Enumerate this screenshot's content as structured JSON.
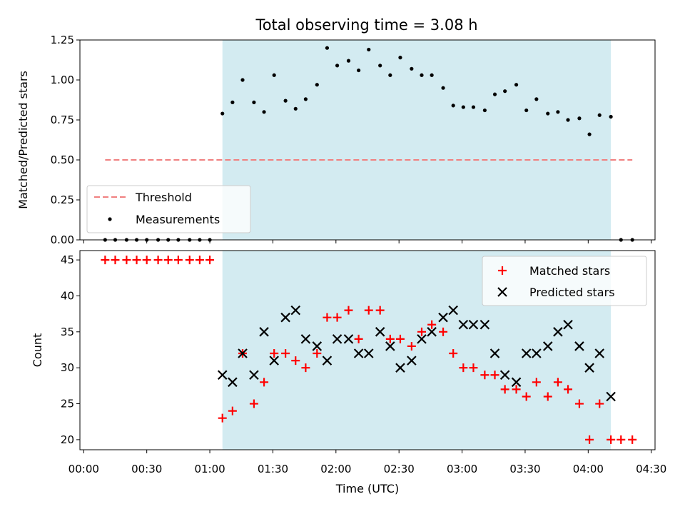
{
  "chart_data": {
    "title": "Total observing time = 3.08 h",
    "xlabel": "Time (UTC)",
    "x_unit": "hours (UTC)",
    "x_range": [
      -0.03,
      4.53
    ],
    "x_ticks": [
      0,
      0.5,
      1,
      1.5,
      2,
      2.5,
      3,
      3.5,
      4,
      4.5
    ],
    "x_tick_labels": [
      "00:00",
      "00:30",
      "01:00",
      "01:30",
      "02:00",
      "02:30",
      "03:00",
      "03:30",
      "04:00",
      "04:30"
    ],
    "observing_window": [
      1.1,
      4.18
    ],
    "window_color": "#d3ebf1",
    "panels": [
      {
        "type": "scatter",
        "ylabel": "Matched/Predicted stars",
        "ylim": [
          0,
          1.25
        ],
        "y_ticks": [
          0,
          0.25,
          0.5,
          0.75,
          1.0,
          1.25
        ],
        "y_tick_labels": [
          "0.00",
          "0.25",
          "0.50",
          "0.75",
          "1.00",
          "1.25"
        ],
        "legend_position": "lower-left",
        "threshold": {
          "name": "Threshold",
          "value": 0.5,
          "x_range": [
            0.17,
            4.35
          ],
          "color": "#f08080"
        },
        "series": [
          {
            "name": "Measurements",
            "marker": "dot",
            "color": "#000000",
            "x": [
              0.17,
              0.25,
              0.34,
              0.42,
              0.5,
              0.59,
              0.67,
              0.75,
              0.84,
              0.92,
              1.0,
              1.1,
              1.18,
              1.26,
              1.35,
              1.43,
              1.51,
              1.6,
              1.68,
              1.76,
              1.85,
              1.93,
              2.01,
              2.1,
              2.18,
              2.26,
              2.35,
              2.43,
              2.51,
              2.6,
              2.68,
              2.76,
              2.85,
              2.93,
              3.01,
              3.09,
              3.18,
              3.26,
              3.34,
              3.43,
              3.51,
              3.59,
              3.68,
              3.76,
              3.84,
              3.93,
              4.01,
              4.09,
              4.18,
              4.26,
              4.35
            ],
            "y": [
              0,
              0,
              0,
              0,
              0,
              0,
              0,
              0,
              0,
              0,
              0,
              0.79,
              0.86,
              1.0,
              0.86,
              0.8,
              1.03,
              0.87,
              0.82,
              0.88,
              0.97,
              1.2,
              1.09,
              1.12,
              1.06,
              1.19,
              1.09,
              1.03,
              1.14,
              1.07,
              1.03,
              1.03,
              0.95,
              0.84,
              0.83,
              0.83,
              0.81,
              0.91,
              0.93,
              0.97,
              0.81,
              0.88,
              0.79,
              0.8,
              0.75,
              0.76,
              0.66,
              0.78,
              0.77,
              0.0,
              0.0
            ]
          }
        ]
      },
      {
        "type": "scatter",
        "ylabel": "Count",
        "ylim": [
          18.6,
          46.3
        ],
        "y_ticks": [
          20,
          25,
          30,
          35,
          40,
          45
        ],
        "y_tick_labels": [
          "20",
          "25",
          "30",
          "35",
          "40",
          "45"
        ],
        "legend_position": "upper-right",
        "series": [
          {
            "name": "Matched stars",
            "marker": "plus",
            "color": "#ff0000",
            "x": [
              0.17,
              0.25,
              0.34,
              0.42,
              0.5,
              0.59,
              0.67,
              0.75,
              0.84,
              0.92,
              1.0,
              1.1,
              1.18,
              1.26,
              1.35,
              1.43,
              1.51,
              1.6,
              1.68,
              1.76,
              1.85,
              1.93,
              2.01,
              2.1,
              2.18,
              2.26,
              2.35,
              2.43,
              2.51,
              2.6,
              2.68,
              2.76,
              2.85,
              2.93,
              3.01,
              3.09,
              3.18,
              3.26,
              3.34,
              3.43,
              3.51,
              3.59,
              3.68,
              3.76,
              3.84,
              3.93,
              4.01,
              4.09,
              4.18,
              4.26,
              4.35
            ],
            "y": [
              45,
              45,
              45,
              45,
              45,
              45,
              45,
              45,
              45,
              45,
              45,
              23,
              24,
              32,
              25,
              28,
              32,
              32,
              31,
              30,
              32,
              37,
              37,
              38,
              34,
              38,
              38,
              34,
              34,
              33,
              35,
              36,
              35,
              32,
              30,
              30,
              29,
              29,
              27,
              27,
              26,
              28,
              26,
              28,
              27,
              25,
              20,
              25,
              20,
              20,
              20
            ]
          },
          {
            "name": "Predicted stars",
            "marker": "cross",
            "color": "#000000",
            "x": [
              1.1,
              1.18,
              1.26,
              1.35,
              1.43,
              1.51,
              1.6,
              1.68,
              1.76,
              1.85,
              1.93,
              2.01,
              2.1,
              2.18,
              2.26,
              2.35,
              2.43,
              2.51,
              2.6,
              2.68,
              2.76,
              2.85,
              2.93,
              3.01,
              3.09,
              3.18,
              3.26,
              3.34,
              3.43,
              3.51,
              3.59,
              3.68,
              3.76,
              3.84,
              3.93,
              4.01,
              4.09,
              4.18
            ],
            "y": [
              29,
              28,
              32,
              29,
              35,
              31,
              37,
              38,
              34,
              33,
              31,
              34,
              34,
              32,
              32,
              35,
              33,
              30,
              31,
              34,
              35,
              37,
              38,
              36,
              36,
              36,
              32,
              29,
              28,
              32,
              32,
              33,
              35,
              36,
              33,
              30,
              32,
              26
            ]
          }
        ]
      }
    ]
  }
}
